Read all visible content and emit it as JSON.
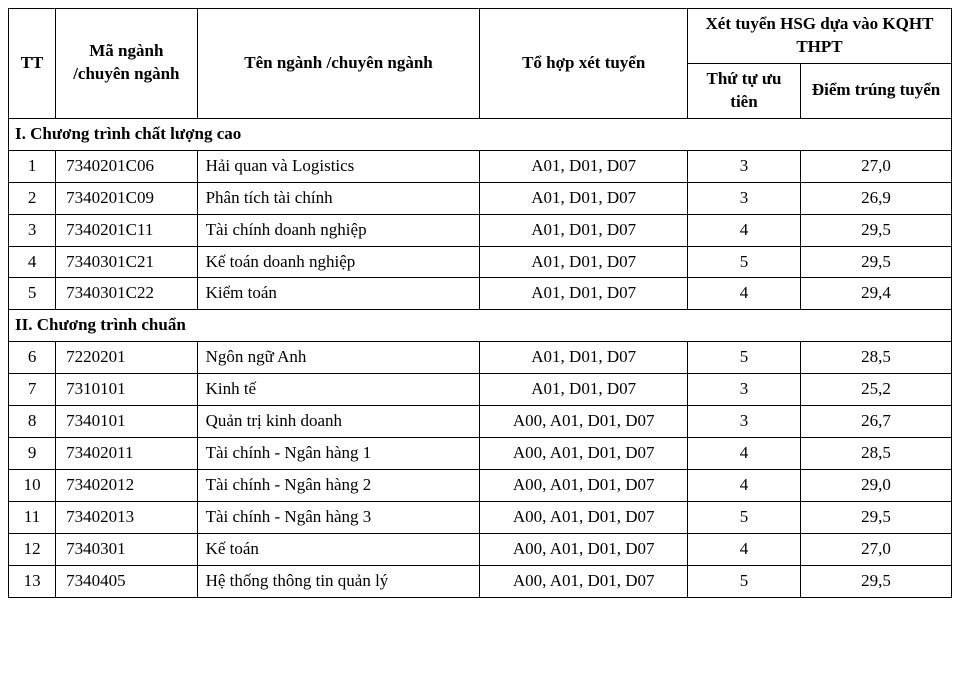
{
  "columns": {
    "tt": "TT",
    "code": "Mã ngành /chuyên ngành",
    "name": "Tên ngành /chuyên ngành",
    "combo": "Tổ hợp xét tuyển",
    "group": "Xét tuyển HSG dựa vào KQHT THPT",
    "priority": "Thứ tự ưu tiên",
    "score": "Điểm trúng tuyển"
  },
  "sections": [
    {
      "title": "I. Chương trình chất lượng cao",
      "rows": [
        {
          "tt": "1",
          "code": "7340201C06",
          "name": "Hải quan và Logistics",
          "combo": "A01, D01, D07",
          "prio": "3",
          "score": "27,0"
        },
        {
          "tt": "2",
          "code": "7340201C09",
          "name": "Phân tích tài chính",
          "combo": "A01, D01, D07",
          "prio": "3",
          "score": "26,9"
        },
        {
          "tt": "3",
          "code": "7340201C11",
          "name": "Tài chính doanh nghiệp",
          "combo": "A01, D01, D07",
          "prio": "4",
          "score": "29,5"
        },
        {
          "tt": "4",
          "code": "7340301C21",
          "name": "Kế toán doanh nghiệp",
          "combo": "A01, D01, D07",
          "prio": "5",
          "score": "29,5"
        },
        {
          "tt": "5",
          "code": "7340301C22",
          "name": "Kiểm toán",
          "combo": "A01, D01, D07",
          "prio": "4",
          "score": "29,4"
        }
      ]
    },
    {
      "title": "II. Chương trình chuẩn",
      "rows": [
        {
          "tt": "6",
          "code": "7220201",
          "name": "Ngôn ngữ Anh",
          "combo": "A01, D01, D07",
          "prio": "5",
          "score": "28,5"
        },
        {
          "tt": "7",
          "code": "7310101",
          "name": "Kinh tế",
          "combo": "A01, D01, D07",
          "prio": "3",
          "score": "25,2"
        },
        {
          "tt": "8",
          "code": "7340101",
          "name": "Quản trị kinh doanh",
          "combo": "A00, A01, D01, D07",
          "prio": "3",
          "score": "26,7"
        },
        {
          "tt": "9",
          "code": "73402011",
          "name": "Tài chính - Ngân hàng 1",
          "combo": "A00, A01, D01, D07",
          "prio": "4",
          "score": "28,5"
        },
        {
          "tt": "10",
          "code": "73402012",
          "name": "Tài chính - Ngân hàng 2",
          "combo": "A00, A01, D01, D07",
          "prio": "4",
          "score": "29,0"
        },
        {
          "tt": "11",
          "code": "73402013",
          "name": "Tài chính - Ngân hàng 3",
          "combo": "A00, A01, D01, D07",
          "prio": "5",
          "score": "29,5"
        },
        {
          "tt": "12",
          "code": "7340301",
          "name": "Kế toán",
          "combo": "A00, A01, D01, D07",
          "prio": "4",
          "score": "27,0"
        },
        {
          "tt": "13",
          "code": "7340405",
          "name": "Hệ thống thông tin quản lý",
          "combo": "A00, A01, D01, D07",
          "prio": "5",
          "score": "29,5"
        }
      ]
    }
  ],
  "style": {
    "font_family": "Times New Roman",
    "base_fontsize_pt": 13,
    "border_color": "#000000",
    "background_color": "#ffffff",
    "text_color": "#000000",
    "col_widths_pct": {
      "tt": 5,
      "code": 15,
      "name": 30,
      "combo": 22,
      "prio": 12,
      "score": 16
    }
  }
}
